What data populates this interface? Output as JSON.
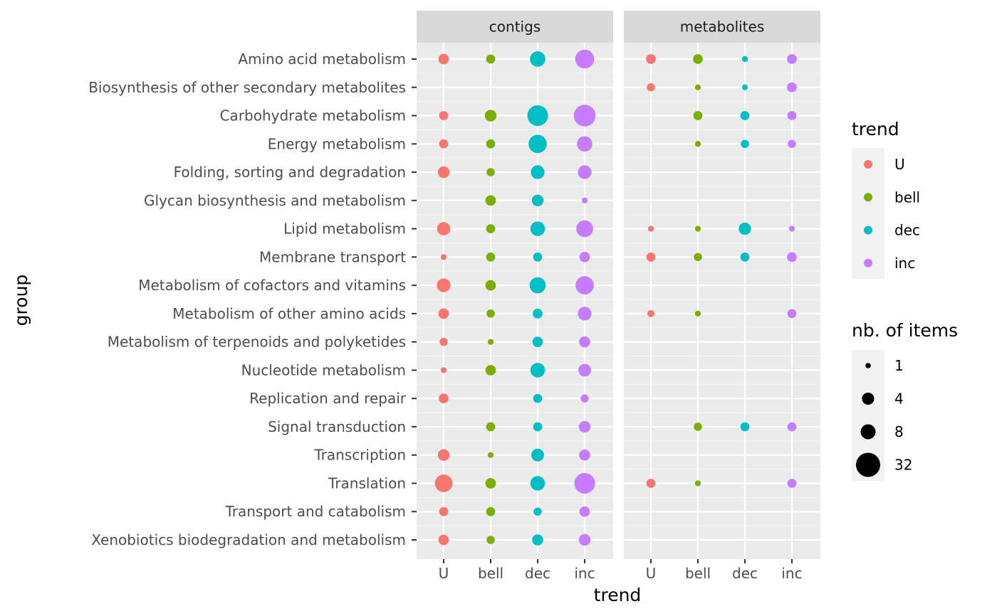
{
  "chart_data": {
    "type": "scatter",
    "xlabel": "trend",
    "ylabel": "group",
    "panels": [
      "contigs",
      "metabolites"
    ],
    "x_categories": [
      "U",
      "bell",
      "dec",
      "inc"
    ],
    "groups": [
      "Amino acid metabolism",
      "Biosynthesis of other secondary metabolites",
      "Carbohydrate metabolism",
      "Energy metabolism",
      "Folding, sorting and degradation",
      "Glycan biosynthesis and metabolism",
      "Lipid metabolism",
      "Membrane transport",
      "Metabolism of cofactors and vitamins",
      "Metabolism of other amino acids",
      "Metabolism of terpenoids and polyketides",
      "Nucleotide metabolism",
      "Replication and repair",
      "Signal transduction",
      "Transcription",
      "Translation",
      "Transport and catabolism",
      "Xenobiotics biodegradation and metabolism"
    ],
    "colors": {
      "U": "#F8766D",
      "bell": "#7CAE00",
      "dec": "#00BFC4",
      "inc": "#C77CFF"
    },
    "size_legend": {
      "title": "nb. of items",
      "values": [
        1,
        4,
        8,
        32
      ]
    },
    "color_legend": {
      "title": "trend",
      "entries": [
        "U",
        "bell",
        "dec",
        "inc"
      ]
    },
    "points": {
      "contigs": {
        "Amino acid metabolism": {
          "U": 6,
          "bell": 4,
          "dec": 16,
          "inc": 26
        },
        "Carbohydrate metabolism": {
          "U": 4,
          "bell": 8,
          "dec": 32,
          "inc": 36
        },
        "Energy metabolism": {
          "U": 4,
          "bell": 4,
          "dec": 24,
          "inc": 16
        },
        "Folding, sorting and degradation": {
          "U": 8,
          "bell": 3,
          "dec": 12,
          "inc": 12
        },
        "Glycan biosynthesis and metabolism": {
          "bell": 6,
          "dec": 8,
          "inc": 1
        },
        "Lipid metabolism": {
          "U": 11,
          "bell": 4,
          "dec": 14,
          "inc": 20
        },
        "Membrane transport": {
          "U": 1,
          "bell": 4,
          "dec": 4,
          "inc": 6
        },
        "Metabolism of cofactors and vitamins": {
          "U": 12,
          "bell": 6,
          "dec": 18,
          "inc": 24
        },
        "Metabolism of other amino acids": {
          "U": 6,
          "bell": 3,
          "dec": 5,
          "inc": 12
        },
        "Metabolism of terpenoids and polyketides": {
          "U": 3,
          "bell": 1,
          "dec": 6,
          "inc": 7
        },
        "Nucleotide metabolism": {
          "U": 1,
          "bell": 6,
          "dec": 14,
          "inc": 10
        },
        "Replication and repair": {
          "U": 5,
          "bell": 0,
          "dec": 4,
          "inc": 3
        },
        "Signal transduction": {
          "bell": 4,
          "dec": 4,
          "inc": 8
        },
        "Transcription": {
          "U": 8,
          "bell": 1,
          "dec": 10,
          "inc": 7
        },
        "Translation": {
          "U": 22,
          "bell": 6,
          "dec": 14,
          "inc": 32
        },
        "Transport and catabolism": {
          "U": 4,
          "bell": 4,
          "dec": 3,
          "inc": 6
        },
        "Xenobiotics biodegradation and metabolism": {
          "U": 6,
          "bell": 3,
          "dec": 7,
          "inc": 8
        }
      },
      "metabolites": {
        "Amino acid metabolism": {
          "U": 5,
          "bell": 5,
          "dec": 1,
          "inc": 5
        },
        "Biosynthesis of other secondary metabolites": {
          "U": 3,
          "bell": 1,
          "dec": 1,
          "inc": 5
        },
        "Carbohydrate metabolism": {
          "bell": 4,
          "dec": 4,
          "inc": 4
        },
        "Energy metabolism": {
          "bell": 1,
          "dec": 3,
          "inc": 3
        },
        "Lipid metabolism": {
          "U": 1,
          "bell": 1,
          "dec": 9,
          "inc": 1
        },
        "Membrane transport": {
          "U": 4,
          "bell": 3,
          "dec": 4,
          "inc": 5
        },
        "Metabolism of other amino acids": {
          "U": 2,
          "bell": 1,
          "inc": 4
        },
        "Signal transduction": {
          "bell": 3,
          "dec": 4,
          "inc": 4
        },
        "Translation": {
          "U": 4,
          "bell": 1,
          "inc": 4
        }
      }
    }
  }
}
